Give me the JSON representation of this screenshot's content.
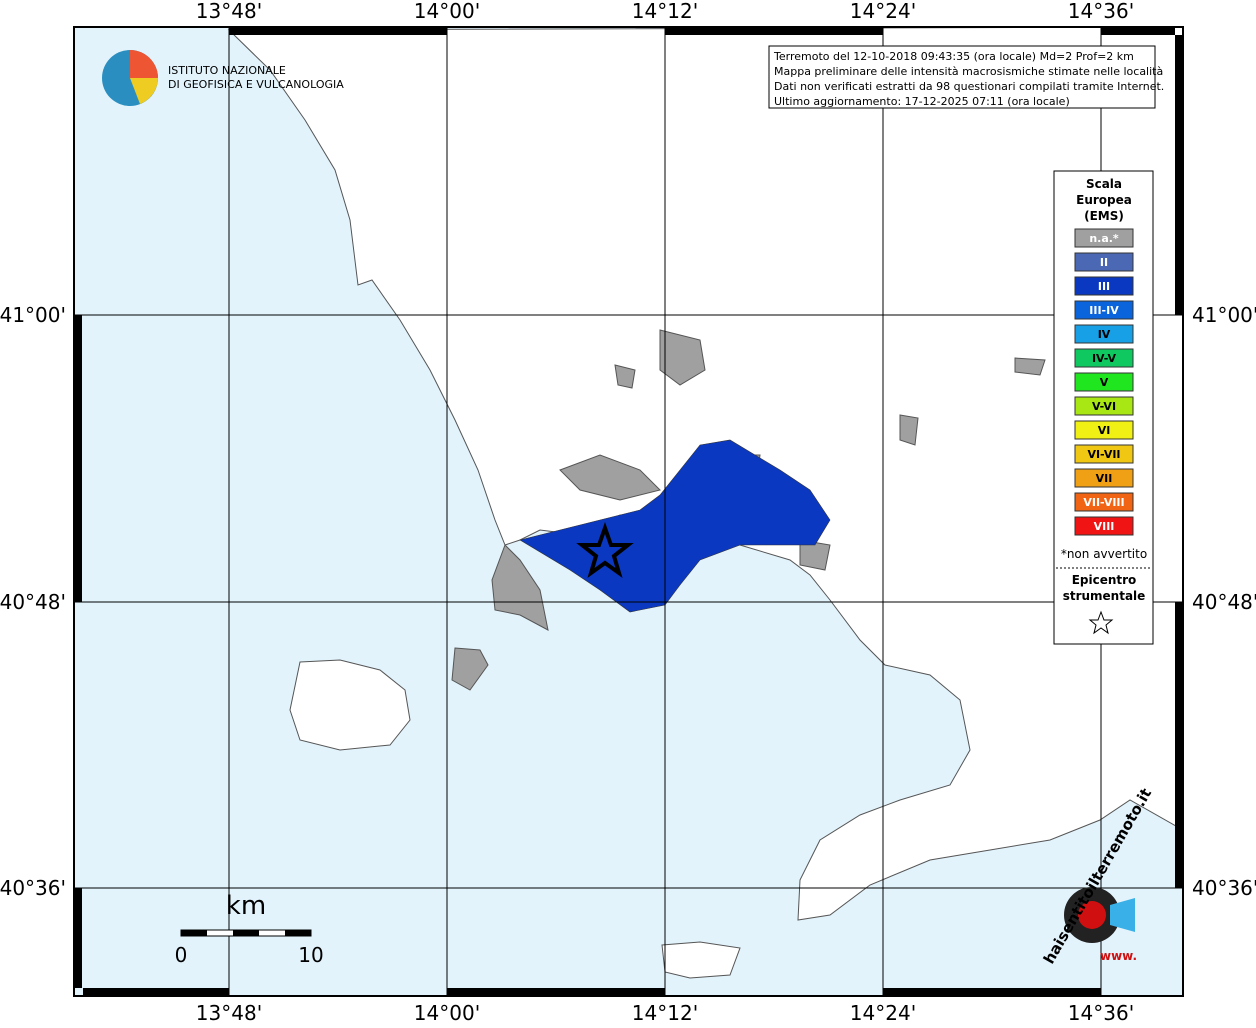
{
  "map": {
    "lon_labels": [
      "13°48'",
      "14°00'",
      "14°12'",
      "14°24'",
      "14°36'"
    ],
    "lat_labels": [
      "41°00'",
      "40°48'",
      "40°36'"
    ],
    "info": [
      "Terremoto del 12-10-2018 09:43:35 (ora locale) Md=2 Prof=2 km",
      "Mappa preliminare delle intensità macrosismiche stimate nelle località",
      "Dati non verificati estratti da 98 questionari compilati tramite Internet.",
      "Ultimo aggiornamento: 17-12-2025 07:11 (ora locale)"
    ],
    "logo": [
      "ISTITUTO NAZIONALE",
      "DI GEOFISICA E VULCANOLOGIA"
    ],
    "legend": {
      "title": [
        "Scala",
        "Europea",
        "(EMS)"
      ],
      "items": [
        {
          "label": "n.a.*",
          "color": "#a0a0a0"
        },
        {
          "label": "II",
          "color": "#4a68b4"
        },
        {
          "label": "III",
          "color": "#0a38c0"
        },
        {
          "label": "III-IV",
          "color": "#0a64dc"
        },
        {
          "label": "IV",
          "color": "#18a0e6"
        },
        {
          "label": "IV-V",
          "color": "#10c860"
        },
        {
          "label": "V",
          "color": "#20e620"
        },
        {
          "label": "V-VI",
          "color": "#a8e614"
        },
        {
          "label": "VI",
          "color": "#f0f014"
        },
        {
          "label": "VI-VII",
          "color": "#f0c814"
        },
        {
          "label": "VII",
          "color": "#f0a014"
        },
        {
          "label": "VII-VIII",
          "color": "#f06414"
        },
        {
          "label": "VIII",
          "color": "#f01414"
        }
      ],
      "note": "*non avvertito",
      "epicentre": [
        "Epicentro",
        "strumentale"
      ]
    },
    "scale": {
      "unit": "km",
      "start": "0",
      "end": "10"
    },
    "site": {
      "name": "haisentitoilterremoto.it",
      "www": "www."
    }
  }
}
